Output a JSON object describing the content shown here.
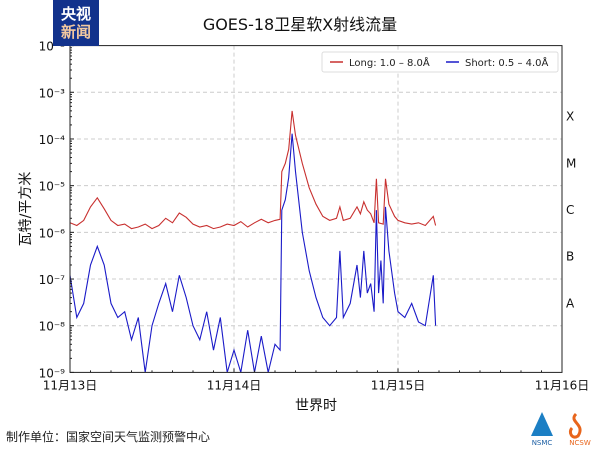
{
  "logo": {
    "line1": "央视",
    "line2": "新闻"
  },
  "footer": {
    "producer": "制作单位：国家空间天气监测预警中心"
  },
  "org_logos": [
    "NSMC",
    "NCSW"
  ],
  "colors": {
    "long": "#c8302f",
    "short": "#1a1ac8",
    "grid": "#cccccc"
  },
  "chart_data": {
    "type": "line",
    "title": "GOES-18卫星软X射线流量",
    "xlabel": "世界时",
    "ylabel": "瓦特/平方米",
    "yscale": "log",
    "ylim": [
      1e-09,
      0.01
    ],
    "xlim": [
      "11-13 00:00",
      "11-16 00:00"
    ],
    "xticks": [
      "11月13日",
      "11月14日",
      "11月15日",
      "11月16日"
    ],
    "yticks": [
      "10⁻⁹",
      "10⁻⁸",
      "10⁻⁷",
      "10⁻⁶",
      "10⁻⁵",
      "10⁻⁴",
      "10⁻³",
      "10⁻²"
    ],
    "class_labels": [
      "X",
      "M",
      "C",
      "B",
      "A"
    ],
    "grid": true,
    "legend_position": "top-right",
    "series": [
      {
        "name": "Long: 1.0 – 8.0Å",
        "color": "#c8302f",
        "points": [
          [
            "11-13 00:00",
            1.6e-06
          ],
          [
            "11-13 01:00",
            1.4e-06
          ],
          [
            "11-13 02:00",
            1.8e-06
          ],
          [
            "11-13 03:00",
            3.5e-06
          ],
          [
            "11-13 04:00",
            5.5e-06
          ],
          [
            "11-13 05:00",
            3.2e-06
          ],
          [
            "11-13 06:00",
            1.8e-06
          ],
          [
            "11-13 07:00",
            1.4e-06
          ],
          [
            "11-13 08:00",
            1.5e-06
          ],
          [
            "11-13 09:00",
            1.2e-06
          ],
          [
            "11-13 10:00",
            1.3e-06
          ],
          [
            "11-13 11:00",
            1.5e-06
          ],
          [
            "11-13 12:00",
            1.2e-06
          ],
          [
            "11-13 13:00",
            1.4e-06
          ],
          [
            "11-13 14:00",
            2e-06
          ],
          [
            "11-13 15:00",
            1.6e-06
          ],
          [
            "11-13 16:00",
            2.6e-06
          ],
          [
            "11-13 17:00",
            2.1e-06
          ],
          [
            "11-13 18:00",
            1.5e-06
          ],
          [
            "11-13 19:00",
            1.3e-06
          ],
          [
            "11-13 20:00",
            1.4e-06
          ],
          [
            "11-13 21:00",
            1.2e-06
          ],
          [
            "11-13 22:00",
            1.3e-06
          ],
          [
            "11-13 23:00",
            1.5e-06
          ],
          [
            "11-14 00:00",
            1.4e-06
          ],
          [
            "11-14 01:00",
            1.7e-06
          ],
          [
            "11-14 02:00",
            1.3e-06
          ],
          [
            "11-14 03:00",
            1.6e-06
          ],
          [
            "11-14 04:00",
            1.9e-06
          ],
          [
            "11-14 05:00",
            1.6e-06
          ],
          [
            "11-14 06:00",
            1.8e-06
          ],
          [
            "11-14 06:45",
            1.9e-06
          ],
          [
            "11-14 07:00",
            2e-05
          ],
          [
            "11-14 07:30",
            3e-05
          ],
          [
            "11-14 08:00",
            6e-05
          ],
          [
            "11-14 08:30",
            0.0004
          ],
          [
            "11-14 09:00",
            0.00012
          ],
          [
            "11-14 10:00",
            3e-05
          ],
          [
            "11-14 11:00",
            9e-06
          ],
          [
            "11-14 12:00",
            4e-06
          ],
          [
            "11-14 13:00",
            2.2e-06
          ],
          [
            "11-14 14:00",
            1.8e-06
          ],
          [
            "11-14 15:00",
            2e-06
          ],
          [
            "11-14 15:30",
            3.5e-06
          ],
          [
            "11-14 16:00",
            1.8e-06
          ],
          [
            "11-14 17:00",
            2e-06
          ],
          [
            "11-14 18:00",
            3.5e-06
          ],
          [
            "11-14 18:30",
            2.5e-06
          ],
          [
            "11-14 19:00",
            4.5e-06
          ],
          [
            "11-14 19:30",
            3e-06
          ],
          [
            "11-14 20:00",
            2.5e-06
          ],
          [
            "11-14 20:30",
            1.6e-06
          ],
          [
            "11-14 20:50",
            1.4e-05
          ],
          [
            "11-14 21:10",
            1.6e-06
          ],
          [
            "11-14 21:50",
            1.5e-06
          ],
          [
            "11-14 22:10",
            1.4e-05
          ],
          [
            "11-14 22:40",
            4e-06
          ],
          [
            "11-14 23:30",
            2.2e-06
          ],
          [
            "11-15 00:00",
            1.8e-06
          ],
          [
            "11-15 01:00",
            1.6e-06
          ],
          [
            "11-15 02:00",
            1.5e-06
          ],
          [
            "11-15 03:00",
            1.6e-06
          ],
          [
            "11-15 04:00",
            1.4e-06
          ],
          [
            "11-15 05:10",
            2.2e-06
          ],
          [
            "11-15 05:30",
            1.4e-06
          ]
        ]
      },
      {
        "name": "Short: 0.5 – 4.0Å",
        "color": "#1a1ac8",
        "points": [
          [
            "11-13 00:00",
            1.2e-07
          ],
          [
            "11-13 01:00",
            1.5e-08
          ],
          [
            "11-13 02:00",
            3e-08
          ],
          [
            "11-13 03:00",
            2e-07
          ],
          [
            "11-13 04:00",
            5e-07
          ],
          [
            "11-13 05:00",
            2e-07
          ],
          [
            "11-13 06:00",
            3e-08
          ],
          [
            "11-13 07:00",
            1.5e-08
          ],
          [
            "11-13 08:00",
            2e-08
          ],
          [
            "11-13 09:00",
            5e-09
          ],
          [
            "11-13 10:00",
            1.5e-08
          ],
          [
            "11-13 11:00",
            1e-09
          ],
          [
            "11-13 12:00",
            1e-08
          ],
          [
            "11-13 13:00",
            3e-08
          ],
          [
            "11-13 14:00",
            8e-08
          ],
          [
            "11-13 15:00",
            2e-08
          ],
          [
            "11-13 16:00",
            1.2e-07
          ],
          [
            "11-13 17:00",
            4e-08
          ],
          [
            "11-13 18:00",
            1e-08
          ],
          [
            "11-13 19:00",
            5e-09
          ],
          [
            "11-13 20:00",
            2e-08
          ],
          [
            "11-13 21:00",
            3e-09
          ],
          [
            "11-13 22:00",
            1.5e-08
          ],
          [
            "11-13 23:00",
            1e-09
          ],
          [
            "11-14 00:00",
            3e-09
          ],
          [
            "11-14 01:00",
            1e-09
          ],
          [
            "11-14 02:00",
            8e-09
          ],
          [
            "11-14 03:00",
            1e-09
          ],
          [
            "11-14 04:00",
            6e-09
          ],
          [
            "11-14 05:00",
            1e-09
          ],
          [
            "11-14 06:00",
            4e-09
          ],
          [
            "11-14 06:45",
            3e-09
          ],
          [
            "11-14 07:00",
            3e-06
          ],
          [
            "11-14 07:30",
            5e-06
          ],
          [
            "11-14 08:00",
            1.5e-05
          ],
          [
            "11-14 08:30",
            0.00013
          ],
          [
            "11-14 09:00",
            2e-05
          ],
          [
            "11-14 10:00",
            1e-06
          ],
          [
            "11-14 11:00",
            1.5e-07
          ],
          [
            "11-14 12:00",
            4e-08
          ],
          [
            "11-14 13:00",
            1.5e-08
          ],
          [
            "11-14 14:00",
            1e-08
          ],
          [
            "11-14 15:00",
            1.5e-08
          ],
          [
            "11-14 15:30",
            4e-07
          ],
          [
            "11-14 16:00",
            1.5e-08
          ],
          [
            "11-14 17:00",
            3e-08
          ],
          [
            "11-14 18:00",
            2e-07
          ],
          [
            "11-14 18:30",
            4e-08
          ],
          [
            "11-14 19:00",
            4e-07
          ],
          [
            "11-14 19:30",
            5e-08
          ],
          [
            "11-14 20:00",
            8e-08
          ],
          [
            "11-14 20:30",
            2e-08
          ],
          [
            "11-14 20:50",
            3e-06
          ],
          [
            "11-14 21:10",
            5e-08
          ],
          [
            "11-14 21:30",
            2.5e-07
          ],
          [
            "11-14 21:50",
            3e-08
          ],
          [
            "11-14 22:10",
            3.5e-06
          ],
          [
            "11-14 22:40",
            4e-07
          ],
          [
            "11-14 23:30",
            5e-08
          ],
          [
            "11-15 00:00",
            2e-08
          ],
          [
            "11-15 01:00",
            1.5e-08
          ],
          [
            "11-15 02:00",
            3e-08
          ],
          [
            "11-15 03:00",
            1.2e-08
          ],
          [
            "11-15 04:00",
            1e-08
          ],
          [
            "11-15 05:10",
            1.2e-07
          ],
          [
            "11-15 05:30",
            1e-08
          ]
        ]
      }
    ]
  }
}
